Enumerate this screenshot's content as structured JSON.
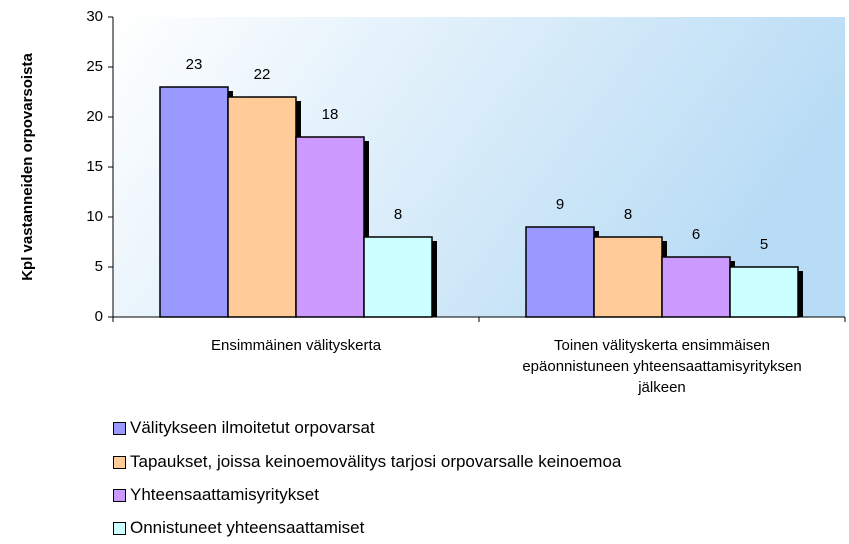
{
  "chart_data": {
    "type": "bar",
    "y_label": "Kpl vastanneiden orpovarsoista",
    "categories": [
      "Ensimmäinen välityskerta",
      "Toinen välityskerta ensimmäisen epäonnistuneen yhteensaattamisyrityksen jälkeen"
    ],
    "series": [
      {
        "name": "Välitykseen ilmoitetut orpovarsat",
        "color": "#9999ff",
        "values": [
          23,
          9
        ]
      },
      {
        "name": "Tapaukset, joissa keinoemovälitys tarjosi orpovarsalle keinoemoa",
        "color": "#ffcc99",
        "values": [
          22,
          8
        ]
      },
      {
        "name": "Yhteensaattamisyritykset",
        "color": "#cc99ff",
        "values": [
          18,
          6
        ]
      },
      {
        "name": "Onnistuneet yhteensaattamiset",
        "color": "#ccffff",
        "values": [
          8,
          5
        ]
      }
    ],
    "ylim": [
      0,
      30
    ],
    "yticks": [
      0,
      5,
      10,
      15,
      20,
      25,
      30
    ],
    "legend": "bottom"
  }
}
